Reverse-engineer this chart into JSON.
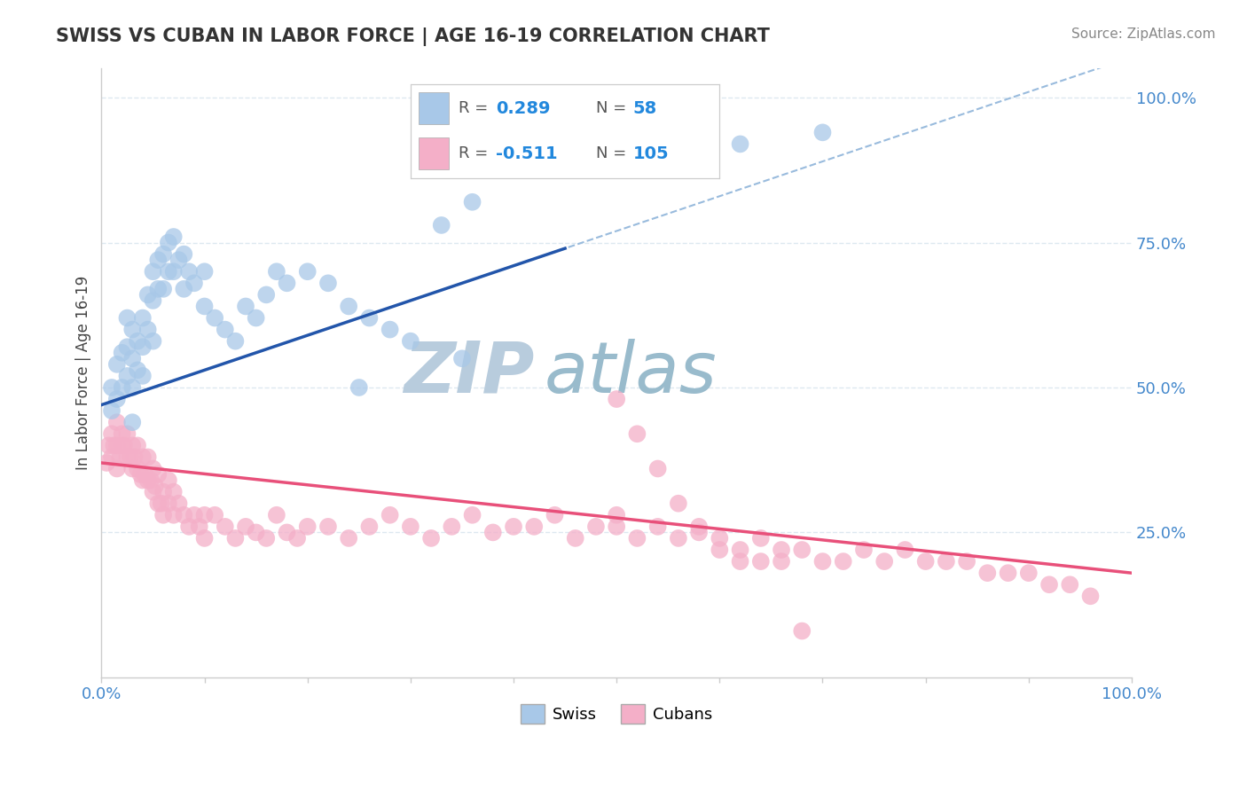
{
  "title": "SWISS VS CUBAN IN LABOR FORCE | AGE 16-19 CORRELATION CHART",
  "source_text": "Source: ZipAtlas.com",
  "ylabel": "In Labor Force | Age 16-19",
  "xlim": [
    0.0,
    1.0
  ],
  "ylim": [
    0.0,
    1.05
  ],
  "ytick_positions": [
    0.25,
    0.5,
    0.75,
    1.0
  ],
  "swiss_color": "#a8c8e8",
  "cuban_color": "#f4afc8",
  "swiss_line_color": "#2255aa",
  "cuban_line_color": "#e8507a",
  "dashed_line_color": "#99bbdd",
  "swiss_R": 0.289,
  "swiss_N": 58,
  "cuban_R": -0.511,
  "cuban_N": 105,
  "legend_R_color": "#2288dd",
  "legend_N_color": "#2288dd",
  "watermark_zip": "ZIP",
  "watermark_atlas": "atlas",
  "watermark_color_zip": "#b8ccdd",
  "watermark_color_atlas": "#99bbcc",
  "background_color": "#ffffff",
  "grid_color": "#dde8f0",
  "swiss_x": [
    0.01,
    0.01,
    0.015,
    0.015,
    0.02,
    0.02,
    0.025,
    0.025,
    0.025,
    0.03,
    0.03,
    0.03,
    0.03,
    0.035,
    0.035,
    0.04,
    0.04,
    0.04,
    0.045,
    0.045,
    0.05,
    0.05,
    0.05,
    0.055,
    0.055,
    0.06,
    0.06,
    0.065,
    0.065,
    0.07,
    0.07,
    0.075,
    0.08,
    0.08,
    0.085,
    0.09,
    0.1,
    0.1,
    0.11,
    0.12,
    0.13,
    0.14,
    0.15,
    0.16,
    0.17,
    0.18,
    0.2,
    0.22,
    0.24,
    0.25,
    0.26,
    0.28,
    0.3,
    0.33,
    0.35,
    0.36,
    0.62,
    0.7
  ],
  "swiss_y": [
    0.46,
    0.5,
    0.54,
    0.48,
    0.56,
    0.5,
    0.52,
    0.57,
    0.62,
    0.6,
    0.55,
    0.5,
    0.44,
    0.58,
    0.53,
    0.62,
    0.57,
    0.52,
    0.66,
    0.6,
    0.7,
    0.65,
    0.58,
    0.72,
    0.67,
    0.73,
    0.67,
    0.75,
    0.7,
    0.76,
    0.7,
    0.72,
    0.73,
    0.67,
    0.7,
    0.68,
    0.7,
    0.64,
    0.62,
    0.6,
    0.58,
    0.64,
    0.62,
    0.66,
    0.7,
    0.68,
    0.7,
    0.68,
    0.64,
    0.5,
    0.62,
    0.6,
    0.58,
    0.78,
    0.55,
    0.82,
    0.92,
    0.94
  ],
  "cuban_x": [
    0.005,
    0.007,
    0.01,
    0.01,
    0.012,
    0.015,
    0.015,
    0.015,
    0.018,
    0.02,
    0.02,
    0.022,
    0.025,
    0.025,
    0.028,
    0.03,
    0.03,
    0.032,
    0.035,
    0.035,
    0.038,
    0.04,
    0.04,
    0.042,
    0.045,
    0.045,
    0.048,
    0.05,
    0.05,
    0.052,
    0.055,
    0.055,
    0.058,
    0.06,
    0.06,
    0.065,
    0.065,
    0.07,
    0.07,
    0.075,
    0.08,
    0.085,
    0.09,
    0.095,
    0.1,
    0.1,
    0.11,
    0.12,
    0.13,
    0.14,
    0.15,
    0.16,
    0.17,
    0.18,
    0.19,
    0.2,
    0.22,
    0.24,
    0.26,
    0.28,
    0.3,
    0.32,
    0.34,
    0.36,
    0.38,
    0.4,
    0.42,
    0.44,
    0.46,
    0.48,
    0.5,
    0.5,
    0.52,
    0.54,
    0.56,
    0.58,
    0.6,
    0.62,
    0.64,
    0.66,
    0.68,
    0.7,
    0.72,
    0.74,
    0.76,
    0.78,
    0.8,
    0.82,
    0.84,
    0.86,
    0.88,
    0.9,
    0.92,
    0.94,
    0.96,
    0.5,
    0.52,
    0.54,
    0.56,
    0.58,
    0.6,
    0.62,
    0.64,
    0.66,
    0.68
  ],
  "cuban_y": [
    0.37,
    0.4,
    0.42,
    0.38,
    0.4,
    0.36,
    0.4,
    0.44,
    0.38,
    0.42,
    0.4,
    0.4,
    0.38,
    0.42,
    0.38,
    0.36,
    0.4,
    0.38,
    0.36,
    0.4,
    0.35,
    0.34,
    0.38,
    0.35,
    0.34,
    0.38,
    0.34,
    0.32,
    0.36,
    0.33,
    0.3,
    0.35,
    0.3,
    0.28,
    0.32,
    0.3,
    0.34,
    0.28,
    0.32,
    0.3,
    0.28,
    0.26,
    0.28,
    0.26,
    0.24,
    0.28,
    0.28,
    0.26,
    0.24,
    0.26,
    0.25,
    0.24,
    0.28,
    0.25,
    0.24,
    0.26,
    0.26,
    0.24,
    0.26,
    0.28,
    0.26,
    0.24,
    0.26,
    0.28,
    0.25,
    0.26,
    0.26,
    0.28,
    0.24,
    0.26,
    0.26,
    0.28,
    0.24,
    0.26,
    0.24,
    0.25,
    0.24,
    0.22,
    0.24,
    0.22,
    0.22,
    0.2,
    0.2,
    0.22,
    0.2,
    0.22,
    0.2,
    0.2,
    0.2,
    0.18,
    0.18,
    0.18,
    0.16,
    0.16,
    0.14,
    0.48,
    0.42,
    0.36,
    0.3,
    0.26,
    0.22,
    0.2,
    0.2,
    0.2,
    0.08
  ]
}
